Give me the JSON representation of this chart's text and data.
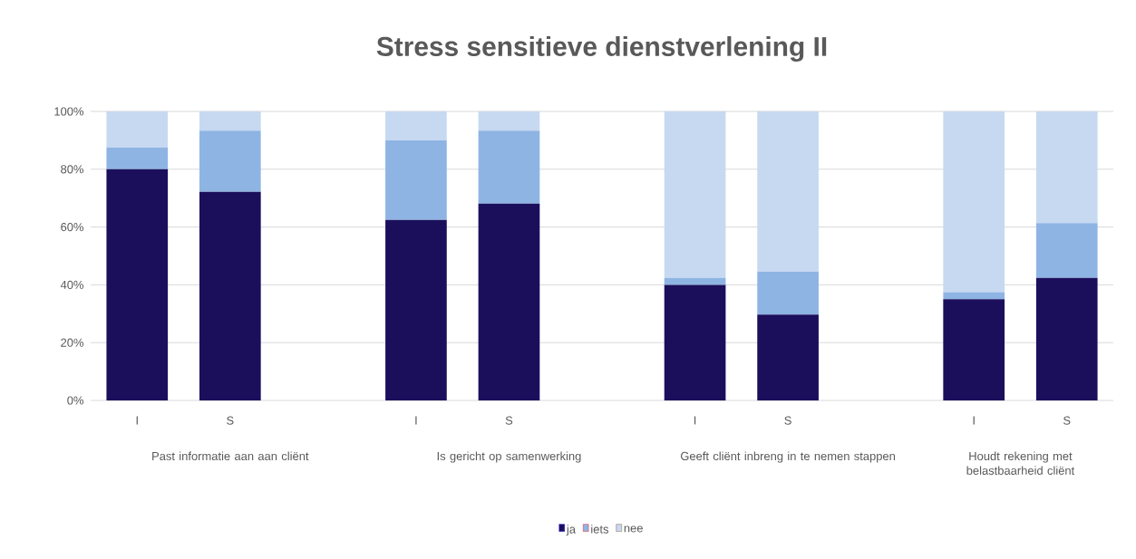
{
  "chart_data": {
    "type": "bar",
    "title": "Stress sensitieve dienstverlening II",
    "categories": [
      "I",
      "S",
      null,
      "I",
      "S",
      null,
      "I",
      "S",
      null,
      "I",
      "S"
    ],
    "series": [
      {
        "name": "ja",
        "color": "#1b0f5c",
        "values": [
          80,
          72.2,
          null,
          62.5,
          68.1,
          null,
          40,
          29.7,
          null,
          35,
          42.4
        ]
      },
      {
        "name": "iets",
        "color": "#8eb4e3",
        "values": [
          7.5,
          21.1,
          null,
          27.5,
          25.2,
          null,
          2.4,
          14.9,
          null,
          2.5,
          19
        ]
      },
      {
        "name": "nee",
        "color": "#c6d9f1",
        "values": [
          12.5,
          6.7,
          null,
          10,
          6.7,
          null,
          57.6,
          55.4,
          null,
          62.5,
          38.6
        ]
      }
    ],
    "stacked": true,
    "ylim": [
      0,
      100
    ],
    "yticks": [
      {
        "value": 0,
        "label": "0%"
      },
      {
        "value": 20,
        "label": "20%"
      },
      {
        "value": 40,
        "label": "40%"
      },
      {
        "value": 60,
        "label": "60%"
      },
      {
        "value": 80,
        "label": "80%"
      },
      {
        "value": 100,
        "label": "100%"
      }
    ],
    "grid": "y",
    "legend": "bottom",
    "annotations": [
      "Past informatie aan aan cliënt",
      "Is gericht op samenwerking",
      "Geeft cliënt inbreng in te nemen stappen",
      "Houdt rekening met belastbaarheid cliënt"
    ]
  }
}
